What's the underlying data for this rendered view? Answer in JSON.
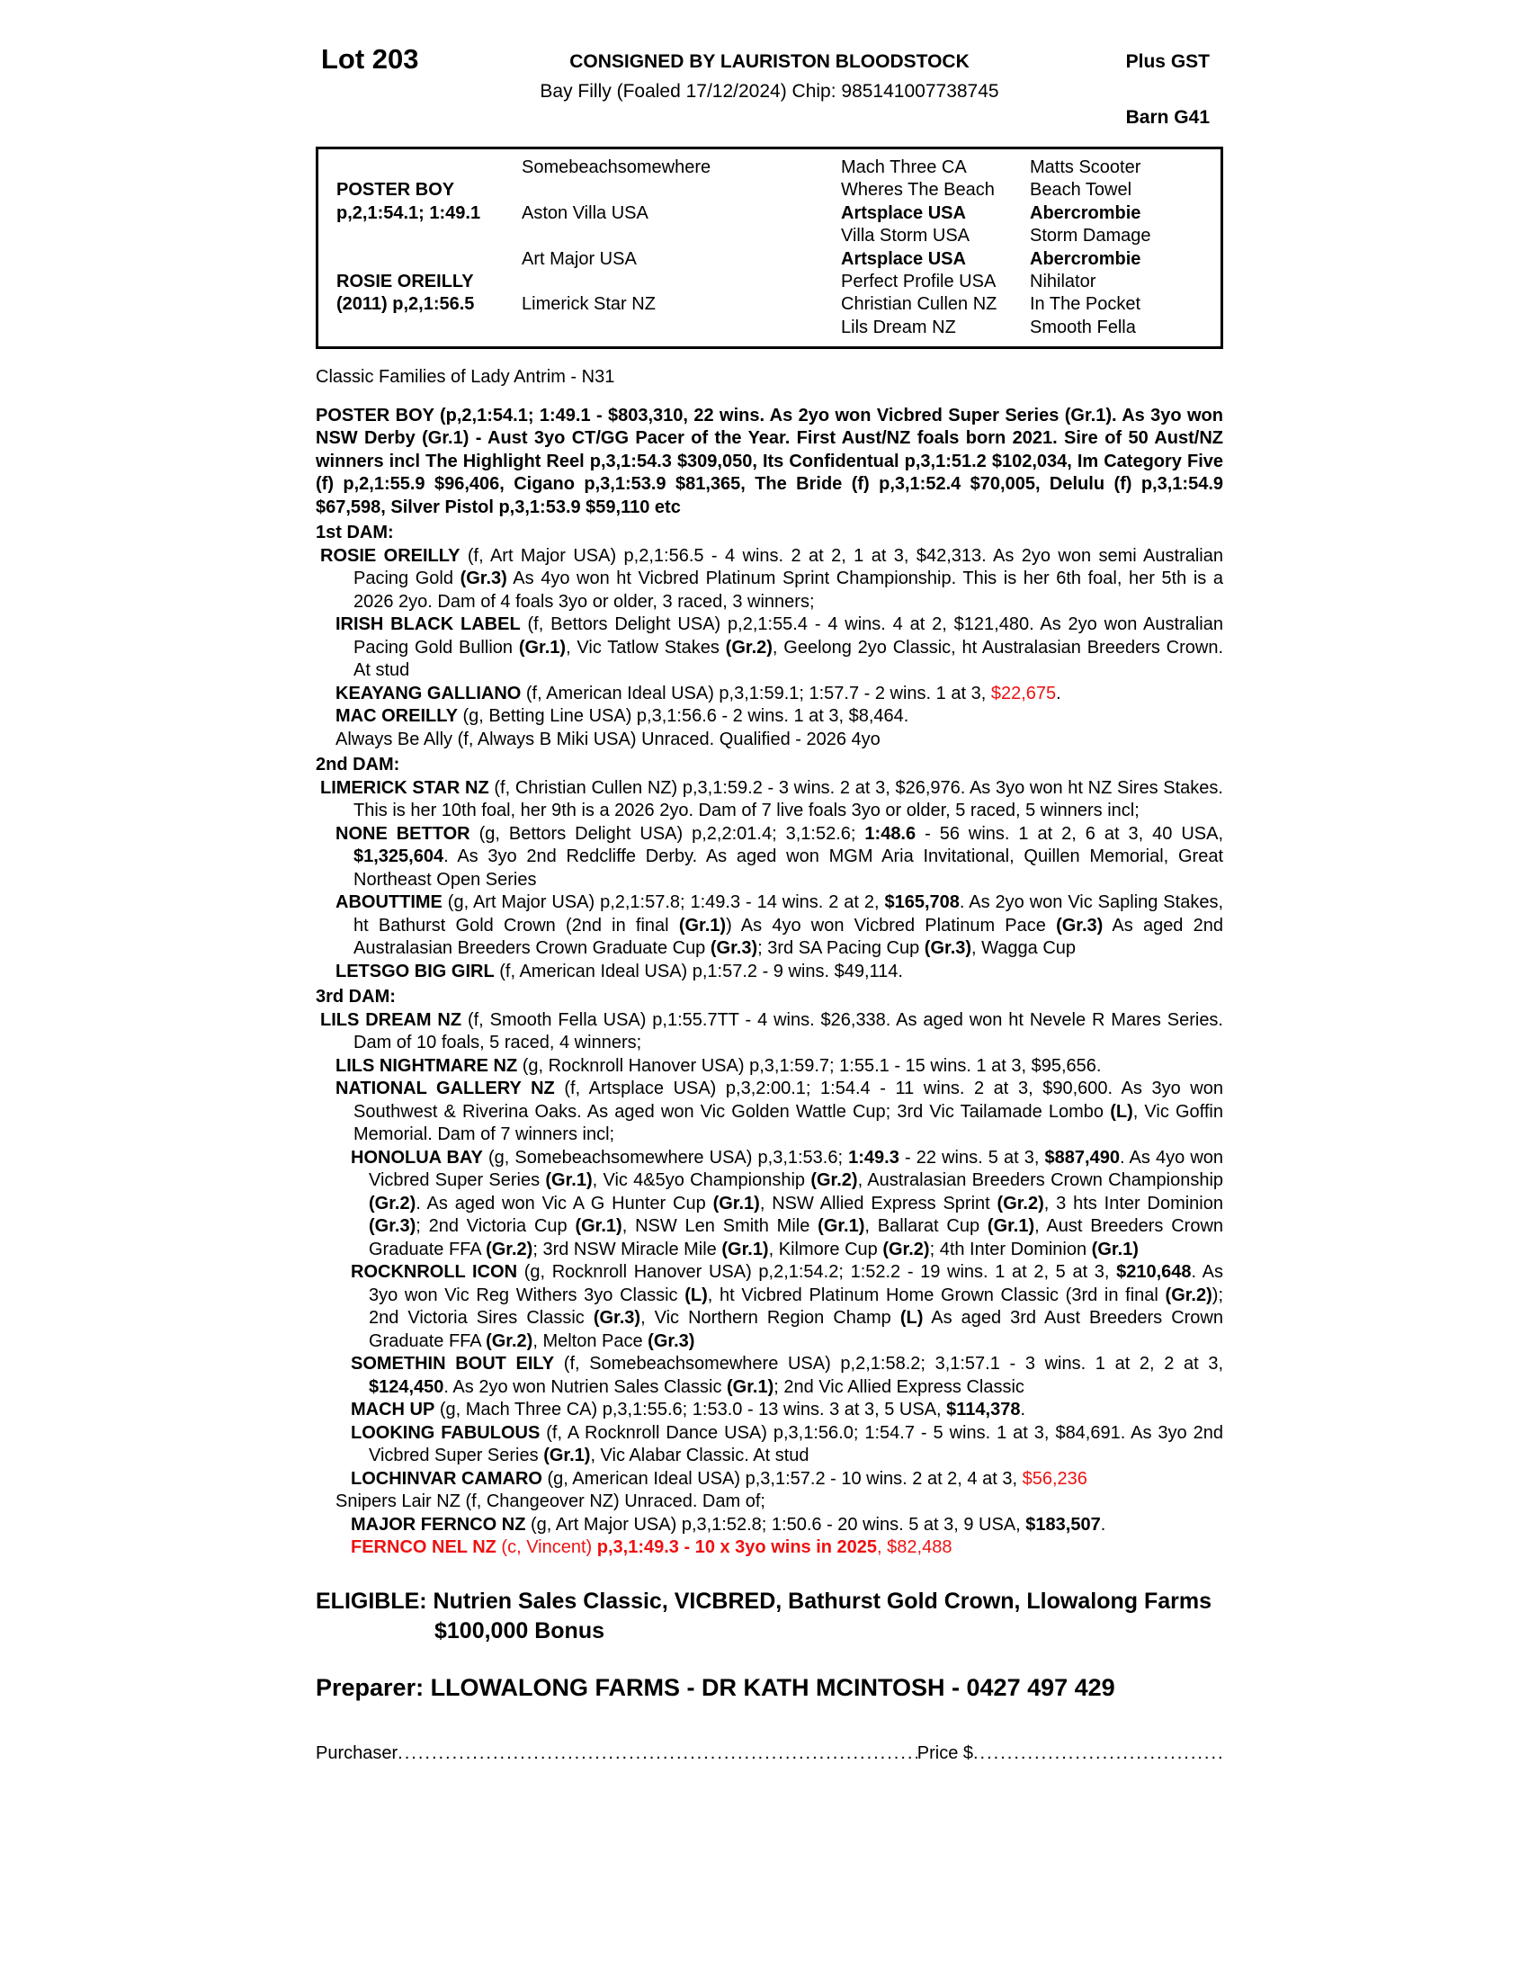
{
  "header": {
    "lot": "Lot 203",
    "consigned_by": "CONSIGNED BY LAURISTON BLOODSTOCK",
    "foal_details": "Bay Filly (Foaled 17/12/2024) Chip: 985141007738745",
    "plus_gst": "Plus GST",
    "barn": "Barn G41"
  },
  "colors": {
    "highlight_red": "#ee1111",
    "text": "#000000",
    "page_background": "#ffffff"
  },
  "pedigree": {
    "cells": [
      {
        "t": "POSTER BOY",
        "c": 1,
        "r": 2,
        "b": 1
      },
      {
        "t": "p,2,1:54.1; 1:49.1",
        "c": 1,
        "r": 3,
        "b": 1
      },
      {
        "t": "ROSIE OREILLY",
        "c": 1,
        "r": 6,
        "b": 1
      },
      {
        "t": "(2011) p,2,1:56.5",
        "c": 1,
        "r": 7,
        "b": 1
      },
      {
        "t": "Somebeachsomewhere",
        "c": 2,
        "r": 1
      },
      {
        "t": "Aston Villa USA",
        "c": 2,
        "r": 3
      },
      {
        "t": "Art Major USA",
        "c": 2,
        "r": 5
      },
      {
        "t": "Limerick Star NZ",
        "c": 2,
        "r": 7
      },
      {
        "t": "Mach Three CA",
        "c": 3,
        "r": 1
      },
      {
        "t": "Wheres The Beach",
        "c": 3,
        "r": 2
      },
      {
        "t": "Artsplace USA",
        "c": 3,
        "r": 3,
        "b": 1
      },
      {
        "t": "Villa Storm USA",
        "c": 3,
        "r": 4
      },
      {
        "t": "Artsplace USA",
        "c": 3,
        "r": 5,
        "b": 1
      },
      {
        "t": "Perfect Profile USA",
        "c": 3,
        "r": 6
      },
      {
        "t": "Christian Cullen NZ",
        "c": 3,
        "r": 7
      },
      {
        "t": "Lils Dream NZ",
        "c": 3,
        "r": 8
      },
      {
        "t": "Matts Scooter",
        "c": 4,
        "r": 1
      },
      {
        "t": "Beach Towel",
        "c": 4,
        "r": 2
      },
      {
        "t": "Abercrombie",
        "c": 4,
        "r": 3,
        "b": 1
      },
      {
        "t": "Storm Damage",
        "c": 4,
        "r": 4
      },
      {
        "t": "Abercrombie",
        "c": 4,
        "r": 5,
        "b": 1
      },
      {
        "t": "Nihilator",
        "c": 4,
        "r": 6
      },
      {
        "t": "In The Pocket",
        "c": 4,
        "r": 7
      },
      {
        "t": "Smooth Fella",
        "c": 4,
        "r": 8
      }
    ]
  },
  "family_line": "Classic Families of Lady Antrim - N31",
  "sire_paragraph": "POSTER BOY (p,2,1:54.1; 1:49.1 - $803,310, 22 wins. As 2yo won Vicbred Super Series (Gr.1). As 3yo won NSW Derby (Gr.1) - Aust 3yo CT/GG Pacer of the Year. First Aust/NZ foals born 2021. Sire of 50 Aust/NZ winners incl The Highlight Reel p,3,1:54.3 $309,050, Its Confidentual p,3,1:51.2 $102,034, Im Category Five (f) p,2,1:55.9 $96,406, Cigano p,3,1:53.9 $81,365, The Bride (f) p,3,1:52.4 $70,005, Delulu (f) p,3,1:54.9 $67,598, Silver Pistol p,3,1:53.9 $59,110 etc",
  "sections": [
    {
      "heading": "1st DAM:",
      "entries": [
        {
          "level": 1,
          "seg": [
            [
              "ROSIE OREILLY",
              "b"
            ],
            [
              " (f, Art Major USA) p,2,1:56.5 - 4 wins. 2 at 2, 1 at 3, $42,313. As 2yo won semi Australian Pacing Gold ",
              ""
            ],
            [
              "(Gr.3)",
              "b"
            ],
            [
              " As 4yo won ht Vicbred Platinum Sprint Championship. This is her 6th foal, her 5th is a 2026 2yo. Dam of 4 foals 3yo or older, 3 raced, 3 winners;",
              ""
            ]
          ]
        },
        {
          "level": 2,
          "seg": [
            [
              "IRISH BLACK LABEL",
              "b"
            ],
            [
              " (f, Bettors Delight USA) p,2,1:55.4 - 4 wins. 4 at 2, $121,480. As 2yo won Australian Pacing Gold Bullion ",
              ""
            ],
            [
              "(Gr.1)",
              "b"
            ],
            [
              ", Vic Tatlow Stakes ",
              ""
            ],
            [
              "(Gr.2)",
              "b"
            ],
            [
              ", Geelong 2yo Classic, ht Australasian Breeders Crown. At stud",
              ""
            ]
          ]
        },
        {
          "level": 2,
          "seg": [
            [
              "KEAYANG GALLIANO",
              "b"
            ],
            [
              " (f, American Ideal USA) p,3,1:59.1; 1:57.7 - 2 wins. 1 at 3, ",
              ""
            ],
            [
              "$22,675",
              "r"
            ],
            [
              ".",
              ""
            ]
          ]
        },
        {
          "level": 2,
          "seg": [
            [
              "MAC OREILLY",
              "b"
            ],
            [
              " (g, Betting Line USA) p,3,1:56.6 - 2 wins. 1 at 3, $8,464.",
              ""
            ]
          ]
        },
        {
          "level": 2,
          "seg": [
            [
              "Always Be Ally (f, Always B Miki USA) Unraced. Qualified - 2026 4yo",
              ""
            ]
          ]
        }
      ]
    },
    {
      "heading": "2nd DAM:",
      "entries": [
        {
          "level": 1,
          "seg": [
            [
              "LIMERICK STAR NZ",
              "b"
            ],
            [
              " (f, Christian Cullen NZ) p,3,1:59.2 - 3 wins. 2 at 3, $26,976. As 3yo won ht NZ Sires Stakes. This is her 10th foal, her 9th is a 2026 2yo. Dam of 7 live foals 3yo or older, 5 raced, 5 winners incl;",
              ""
            ]
          ]
        },
        {
          "level": 2,
          "seg": [
            [
              "NONE BETTOR",
              "b"
            ],
            [
              " (g, Bettors Delight USA) p,2,2:01.4; 3,1:52.6; ",
              ""
            ],
            [
              "1:48.6",
              "b"
            ],
            [
              " - 56 wins. 1 at 2, 6 at 3, 40 USA, ",
              ""
            ],
            [
              "$1,325,604",
              "b"
            ],
            [
              ". As 3yo 2nd Redcliffe Derby. As aged won MGM Aria Invitational, Quillen Memorial, Great Northeast Open Series",
              ""
            ]
          ]
        },
        {
          "level": 2,
          "seg": [
            [
              "ABOUTTIME",
              "b"
            ],
            [
              " (g, Art Major USA) p,2,1:57.8; 1:49.3 - 14 wins. 2 at 2, ",
              ""
            ],
            [
              "$165,708",
              "b"
            ],
            [
              ". As 2yo won Vic Sapling Stakes, ht Bathurst Gold Crown (2nd in final ",
              ""
            ],
            [
              "(Gr.1)",
              "b"
            ],
            [
              ") As 4yo won Vicbred Platinum Pace ",
              ""
            ],
            [
              "(Gr.3)",
              "b"
            ],
            [
              " As aged 2nd Australasian Breeders Crown Graduate Cup ",
              ""
            ],
            [
              "(Gr.3)",
              "b"
            ],
            [
              "; 3rd SA Pacing Cup ",
              ""
            ],
            [
              "(Gr.3)",
              "b"
            ],
            [
              ", Wagga Cup",
              ""
            ]
          ]
        },
        {
          "level": 2,
          "seg": [
            [
              "LETSGO BIG GIRL",
              "b"
            ],
            [
              " (f, American Ideal USA) p,1:57.2 - 9 wins. $49,114.",
              ""
            ]
          ]
        }
      ]
    },
    {
      "heading": "3rd DAM:",
      "entries": [
        {
          "level": 1,
          "seg": [
            [
              "LILS DREAM NZ",
              "b"
            ],
            [
              " (f, Smooth Fella USA) p,1:55.7TT - 4 wins. $26,338. As aged won ht Nevele R Mares Series. Dam of 10 foals, 5 raced, 4 winners;",
              ""
            ]
          ]
        },
        {
          "level": 2,
          "seg": [
            [
              "LILS NIGHTMARE NZ",
              "b"
            ],
            [
              " (g, Rocknroll Hanover USA) p,3,1:59.7; 1:55.1 - 15 wins. 1 at 3, $95,656.",
              ""
            ]
          ]
        },
        {
          "level": 2,
          "seg": [
            [
              "NATIONAL GALLERY NZ",
              "b"
            ],
            [
              " (f, Artsplace USA) p,3,2:00.1; 1:54.4 - 11 wins. 2 at 3, $90,600. As 3yo won Southwest & Riverina Oaks. As aged won Vic Golden Wattle Cup; 3rd Vic Tailamade Lombo ",
              ""
            ],
            [
              "(L)",
              "b"
            ],
            [
              ", Vic Goffin Memorial. Dam of 7 winners incl;",
              ""
            ]
          ]
        },
        {
          "level": 3,
          "seg": [
            [
              "HONOLUA BAY",
              "b"
            ],
            [
              " (g, Somebeachsomewhere USA) p,3,1:53.6; ",
              ""
            ],
            [
              "1:49.3",
              "b"
            ],
            [
              " - 22 wins. 5 at 3, ",
              ""
            ],
            [
              "$887,490",
              "b"
            ],
            [
              ". As 4yo won Vicbred Super Series ",
              ""
            ],
            [
              "(Gr.1)",
              "b"
            ],
            [
              ", Vic 4&5yo Championship ",
              ""
            ],
            [
              "(Gr.2)",
              "b"
            ],
            [
              ", Australasian Breeders Crown Championship ",
              ""
            ],
            [
              "(Gr.2)",
              "b"
            ],
            [
              ". As aged won Vic A G Hunter Cup ",
              ""
            ],
            [
              "(Gr.1)",
              "b"
            ],
            [
              ", NSW Allied Express Sprint ",
              ""
            ],
            [
              "(Gr.2)",
              "b"
            ],
            [
              ", 3 hts Inter Dominion ",
              ""
            ],
            [
              "(Gr.3)",
              "b"
            ],
            [
              "; 2nd Victoria Cup ",
              ""
            ],
            [
              "(Gr.1)",
              "b"
            ],
            [
              ", NSW Len Smith Mile ",
              ""
            ],
            [
              "(Gr.1)",
              "b"
            ],
            [
              ", Ballarat Cup ",
              ""
            ],
            [
              "(Gr.1)",
              "b"
            ],
            [
              ", Aust Breeders Crown Graduate FFA ",
              ""
            ],
            [
              "(Gr.2)",
              "b"
            ],
            [
              "; 3rd NSW Miracle Mile ",
              ""
            ],
            [
              "(Gr.1)",
              "b"
            ],
            [
              ", Kilmore Cup ",
              ""
            ],
            [
              "(Gr.2)",
              "b"
            ],
            [
              "; 4th Inter Dominion ",
              ""
            ],
            [
              "(Gr.1)",
              "b"
            ]
          ]
        },
        {
          "level": 3,
          "seg": [
            [
              "ROCKNROLL ICON",
              "b"
            ],
            [
              " (g, Rocknroll Hanover USA) p,2,1:54.2; 1:52.2 - 19 wins. 1 at 2, 5 at 3, ",
              ""
            ],
            [
              "$210,648",
              "b"
            ],
            [
              ". As 3yo won Vic Reg Withers 3yo Classic ",
              ""
            ],
            [
              "(L)",
              "b"
            ],
            [
              ", ht Vicbred Platinum Home Grown Classic (3rd in final ",
              ""
            ],
            [
              "(Gr.2)",
              "b"
            ],
            [
              "); 2nd Victoria Sires Classic ",
              ""
            ],
            [
              "(Gr.3)",
              "b"
            ],
            [
              ", Vic Northern Region Champ ",
              ""
            ],
            [
              "(L)",
              "b"
            ],
            [
              " As aged 3rd Aust Breeders Crown Graduate FFA ",
              ""
            ],
            [
              "(Gr.2)",
              "b"
            ],
            [
              ", Melton Pace ",
              ""
            ],
            [
              "(Gr.3)",
              "b"
            ]
          ]
        },
        {
          "level": 3,
          "seg": [
            [
              "SOMETHIN BOUT EILY",
              "b"
            ],
            [
              " (f, Somebeachsomewhere USA) p,2,1:58.2; 3,1:57.1 - 3 wins. 1 at 2, 2 at 3, ",
              ""
            ],
            [
              "$124,450",
              "b"
            ],
            [
              ". As 2yo won Nutrien Sales Classic ",
              ""
            ],
            [
              "(Gr.1)",
              "b"
            ],
            [
              "; 2nd Vic Allied Express Classic",
              ""
            ]
          ]
        },
        {
          "level": 3,
          "seg": [
            [
              "MACH UP",
              "b"
            ],
            [
              " (g, Mach Three CA) p,3,1:55.6; 1:53.0 - 13 wins. 3 at 3, 5 USA, ",
              ""
            ],
            [
              "$114,378",
              "b"
            ],
            [
              ".",
              ""
            ]
          ]
        },
        {
          "level": 3,
          "seg": [
            [
              "LOOKING FABULOUS",
              "b"
            ],
            [
              " (f, A Rocknroll Dance USA) p,3,1:56.0; 1:54.7 - 5 wins. 1 at 3, $84,691. As 3yo 2nd Vicbred Super Series ",
              ""
            ],
            [
              "(Gr.1)",
              "b"
            ],
            [
              ", Vic Alabar Classic. At stud",
              ""
            ]
          ]
        },
        {
          "level": 3,
          "seg": [
            [
              "LOCHINVAR CAMARO",
              "b"
            ],
            [
              " (g, American Ideal USA) p,3,1:57.2 - 10 wins. 2 at 2, 4 at 3, ",
              ""
            ],
            [
              "$56,236",
              "r"
            ]
          ]
        },
        {
          "level": 2,
          "seg": [
            [
              "Snipers Lair NZ (f, Changeover NZ) Unraced. Dam of;",
              ""
            ]
          ]
        },
        {
          "level": 3,
          "seg": [
            [
              "MAJOR FERNCO NZ",
              "b"
            ],
            [
              " (g, Art Major USA) p,3,1:52.8; 1:50.6 - 20 wins. 5 at 3, 9 USA, ",
              ""
            ],
            [
              "$183,507",
              "b"
            ],
            [
              ".",
              ""
            ]
          ]
        },
        {
          "level": 3,
          "seg": [
            [
              "FERNCO NEL NZ",
              "br"
            ],
            [
              " (c, Vincent) ",
              "r"
            ],
            [
              "p,3,1:49.3 - 10 x 3yo wins in 2025",
              "br"
            ],
            [
              ", $82,488",
              "r"
            ]
          ]
        }
      ]
    }
  ],
  "eligible": "ELIGIBLE: Nutrien Sales Classic, VICBRED, Bathurst Gold Crown, Llowalong Farms $100,000 Bonus",
  "preparer": "Preparer: LLOWALONG FARMS - DR KATH MCINTOSH - 0427 497 429",
  "purchase": {
    "purchaser_label": "Purchaser",
    "leader_dots": "........................................................................................................................",
    "price_label": "Price $",
    "leader_dots2": "......................................................................"
  }
}
